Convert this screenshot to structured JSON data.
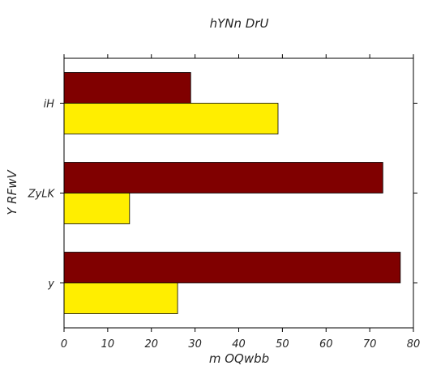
{
  "chart_data": {
    "type": "bar",
    "orientation": "horizontal",
    "title": "hYNn DrU",
    "xlabel": "m OQwbb",
    "ylabel": "Y  RFwV",
    "categories": [
      "iH",
      "ZyLK",
      "y"
    ],
    "series": [
      {
        "color": "#800000",
        "values": [
          29,
          73,
          77
        ]
      },
      {
        "color": "#ffee00",
        "values": [
          49,
          15,
          26
        ]
      }
    ],
    "xlim": [
      0,
      80
    ],
    "xticks": [
      "0",
      "10",
      "20",
      "30",
      "40",
      "50",
      "60",
      "70",
      "80"
    ],
    "grid": false,
    "legend": "none"
  }
}
